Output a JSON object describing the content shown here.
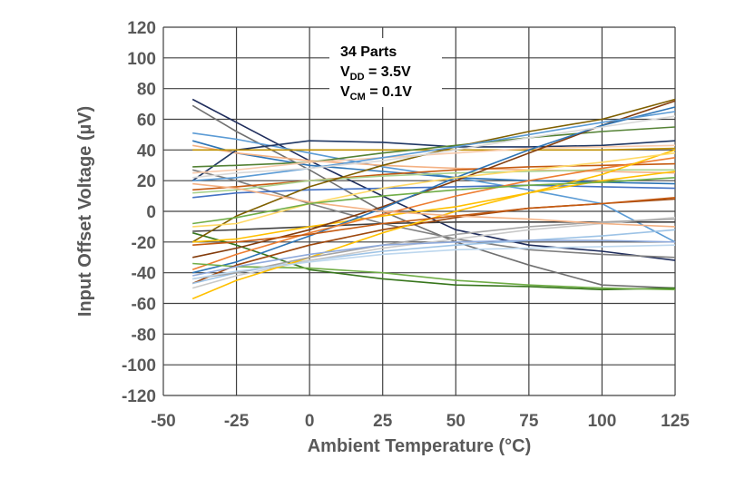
{
  "chart_data": {
    "type": "line",
    "xlabel": "Ambient Temperature (°C)",
    "ylabel": "Input Offset Voltage (µV)",
    "xlim": [
      -50,
      125
    ],
    "ylim": [
      -120,
      120
    ],
    "xticks": [
      -50,
      -25,
      0,
      25,
      50,
      75,
      100,
      125
    ],
    "yticks": [
      -120,
      -100,
      -80,
      -60,
      -40,
      -20,
      0,
      20,
      40,
      60,
      80,
      100,
      120
    ],
    "grid": true,
    "annotation": {
      "line1": "34 Parts",
      "vdd_main": "V",
      "vdd_sub": "DD",
      "vdd_value": " = 3.5V",
      "vcm_main": "V",
      "vcm_sub": "CM",
      "vcm_value": " = 0.1V"
    },
    "x": [
      -40,
      -25,
      0,
      25,
      50,
      75,
      100,
      125
    ],
    "series": [
      {
        "color": "#1f2d5c",
        "values": [
          73,
          58,
          33,
          10,
          -12,
          -22,
          -26,
          -32
        ]
      },
      {
        "color": "#707070",
        "values": [
          69,
          52,
          27,
          0,
          -20,
          -35,
          -48,
          -50
        ]
      },
      {
        "color": "#5b9bd5",
        "values": [
          51,
          47,
          38,
          29,
          22,
          14,
          5,
          -20
        ]
      },
      {
        "color": "#2e75b6",
        "values": [
          46,
          38,
          30,
          26,
          22,
          20,
          19,
          18
        ]
      },
      {
        "color": "#f4b183",
        "values": [
          43,
          38,
          33,
          30,
          28,
          27,
          26,
          25
        ]
      },
      {
        "color": "#203864",
        "values": [
          20,
          40,
          46,
          45,
          42,
          42,
          43,
          46
        ]
      },
      {
        "color": "#bf9000",
        "values": [
          40,
          40,
          40,
          40,
          40,
          40,
          40,
          41
        ]
      },
      {
        "color": "#548235",
        "values": [
          29,
          30,
          32,
          38,
          43,
          48,
          52,
          55
        ]
      },
      {
        "color": "#808080",
        "values": [
          27,
          20,
          5,
          -8,
          -18,
          -25,
          -28,
          -30
        ]
      },
      {
        "color": "#f8cbad",
        "values": [
          25,
          27,
          32,
          35,
          38,
          41,
          42,
          43
        ]
      },
      {
        "color": "#c55a11",
        "values": [
          14,
          16,
          20,
          24,
          27,
          29,
          30,
          31
        ]
      },
      {
        "color": "#a9d18e",
        "values": [
          12,
          14,
          20,
          23,
          25,
          26,
          27,
          27
        ]
      },
      {
        "color": "#4472c4",
        "values": [
          9,
          12,
          14,
          15,
          16,
          17,
          16,
          15
        ]
      },
      {
        "color": "#404040",
        "values": [
          -13,
          -12,
          -10,
          -8,
          -7,
          -7,
          -7,
          -7
        ]
      },
      {
        "color": "#38761d",
        "values": [
          -14,
          -22,
          -38,
          -44,
          -48,
          -49,
          -51,
          -50
        ]
      },
      {
        "color": "#7f6000",
        "values": [
          -20,
          -3,
          16,
          30,
          42,
          52,
          60,
          73
        ]
      },
      {
        "color": "#ffc000",
        "values": [
          -20,
          -18,
          -10,
          -3,
          3,
          12,
          20,
          26
        ]
      },
      {
        "color": "#843c0c",
        "values": [
          -30,
          -24,
          -12,
          3,
          20,
          38,
          56,
          72
        ]
      },
      {
        "color": "#2e75b6",
        "values": [
          -40,
          -33,
          -16,
          2,
          22,
          40,
          56,
          68
        ]
      },
      {
        "color": "#ed7d31",
        "values": [
          -38,
          -28,
          -14,
          -2,
          10,
          20,
          28,
          35
        ]
      },
      {
        "color": "#70ad47",
        "values": [
          -34,
          -36,
          -37,
          -40,
          -45,
          -48,
          -50,
          -51
        ]
      },
      {
        "color": "#9e480e",
        "values": [
          -47,
          -35,
          -22,
          -12,
          -4,
          2,
          5,
          8
        ]
      },
      {
        "color": "#9dc3e6",
        "values": [
          -47,
          -40,
          -32,
          -26,
          -22,
          -19,
          -16,
          -12
        ]
      },
      {
        "color": "#c9c9c9",
        "values": [
          -50,
          -42,
          -32,
          -24,
          -18,
          -12,
          -8,
          -4
        ]
      },
      {
        "color": "#ffc000",
        "values": [
          -57,
          -45,
          -30,
          -14,
          0,
          12,
          24,
          40
        ]
      },
      {
        "color": "#a5a5a5",
        "values": [
          -44,
          -40,
          -30,
          -22,
          -15,
          -10,
          -7,
          -5
        ]
      },
      {
        "color": "#8faadc",
        "values": [
          -42,
          -36,
          -28,
          -22,
          -20,
          -19,
          -19,
          -20
        ]
      },
      {
        "color": "#bdd7ee",
        "values": [
          -44,
          -39,
          -33,
          -28,
          -25,
          -24,
          -23,
          -22
        ]
      },
      {
        "color": "#ffd966",
        "values": [
          -10,
          -8,
          5,
          15,
          22,
          27,
          32,
          38
        ]
      },
      {
        "color": "#f4b183",
        "values": [
          18,
          15,
          6,
          0,
          -3,
          -5,
          -8,
          -10
        ]
      },
      {
        "color": "#5b9bd5",
        "values": [
          20,
          22,
          28,
          35,
          42,
          50,
          58,
          65
        ]
      },
      {
        "color": "#d9d9d9",
        "values": [
          22,
          25,
          28,
          33,
          40,
          48,
          55,
          62
        ]
      },
      {
        "color": "#70ad47",
        "values": [
          -8,
          -4,
          5,
          10,
          14,
          17,
          19,
          22
        ]
      },
      {
        "color": "#c55a11",
        "values": [
          -22,
          -20,
          -15,
          -8,
          -3,
          2,
          5,
          9
        ]
      }
    ]
  }
}
